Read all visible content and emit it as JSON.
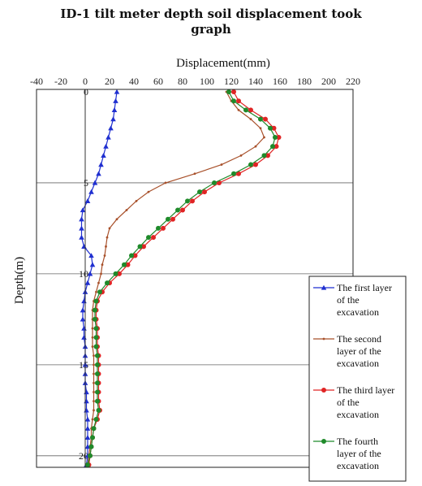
{
  "chart_data": {
    "type": "line",
    "title_line1": "ID-1 tilt meter depth soil displacement took",
    "title_line2": "graph",
    "xlabel": "Displacement(mm)",
    "ylabel": "Depth(m)",
    "xlim": [
      -40,
      220
    ],
    "ylim": [
      0,
      20.5
    ],
    "xticks": [
      "-40",
      "-20",
      "0",
      "20",
      "40",
      "60",
      "80",
      "100",
      "120",
      "140",
      "160",
      "180",
      "200",
      "220"
    ],
    "yticks": [
      "0",
      "5",
      "10",
      "15",
      "20"
    ],
    "gridlines_y": [
      5,
      10,
      15,
      20
    ],
    "legend_position": "right",
    "series": [
      {
        "name": "The first layer of the excavation",
        "color": "#1f2fd0",
        "marker": "triangle",
        "depth": [
          0,
          0.5,
          1,
          1.5,
          2,
          2.5,
          3,
          3.5,
          4,
          4.5,
          5,
          5.5,
          6,
          6.5,
          7,
          7.5,
          8,
          8.5,
          9,
          9.5,
          10,
          10.5,
          11,
          11.5,
          12,
          12.5,
          13,
          13.5,
          14,
          14.5,
          15,
          15.5,
          16,
          16.5,
          17,
          17.5,
          18,
          18.5,
          19,
          19.5,
          20,
          20.5
        ],
        "displacement": [
          26,
          25,
          24,
          23,
          21,
          19,
          17,
          15,
          13,
          11,
          8,
          5,
          2,
          -2,
          -3,
          -3,
          -3,
          -1,
          5,
          6,
          4,
          2,
          0,
          -1,
          -2,
          -2,
          -1,
          -1,
          0,
          0,
          0,
          0,
          0,
          1,
          1,
          1,
          2,
          2,
          2,
          2,
          2,
          1
        ]
      },
      {
        "name": "The second layer of the excavation",
        "color": "#a8502a",
        "marker": "dot",
        "depth": [
          0,
          0.5,
          1,
          1.5,
          2,
          2.5,
          3,
          3.5,
          4,
          4.5,
          5,
          5.5,
          6,
          6.5,
          7,
          7.5,
          8,
          8.5,
          9,
          9.5,
          10,
          10.5,
          11,
          11.5,
          12,
          12.5,
          13,
          13.5,
          14,
          14.5,
          15,
          15.5,
          16,
          16.5,
          17,
          17.5,
          18,
          18.5,
          19,
          19.5,
          20,
          20.5
        ],
        "displacement": [
          116,
          120,
          126,
          136,
          144,
          147,
          140,
          128,
          112,
          90,
          66,
          52,
          42,
          34,
          26,
          20,
          18,
          17,
          16,
          14,
          13,
          11,
          9,
          7,
          6,
          6,
          6,
          6,
          6,
          7,
          7,
          7,
          7,
          7,
          7,
          7,
          6,
          5,
          5,
          4,
          3,
          2
        ]
      },
      {
        "name": "The third layer of the excavation",
        "color": "#e02424",
        "marker": "circle",
        "depth": [
          0,
          0.5,
          1,
          1.5,
          2,
          2.5,
          3,
          3.5,
          4,
          4.5,
          5,
          5.5,
          6,
          6.5,
          7,
          7.5,
          8,
          8.5,
          9,
          9.5,
          10,
          10.5,
          11,
          11.5,
          12,
          12.5,
          13,
          13.5,
          14,
          14.5,
          15,
          15.5,
          16,
          16.5,
          17,
          17.5,
          18,
          18.5,
          19,
          19.5,
          20,
          20.5
        ],
        "displacement": [
          122,
          126,
          136,
          148,
          155,
          159,
          157,
          150,
          140,
          126,
          110,
          98,
          88,
          80,
          72,
          64,
          56,
          48,
          41,
          35,
          28,
          20,
          14,
          10,
          9,
          9,
          10,
          10,
          10,
          11,
          11,
          11,
          11,
          11,
          11,
          12,
          10,
          7,
          6,
          5,
          4,
          3
        ]
      },
      {
        "name": "The fourth layer of the excavation",
        "color": "#1f8a2a",
        "marker": "circle",
        "depth": [
          0,
          0.5,
          1,
          1.5,
          2,
          2.5,
          3,
          3.5,
          4,
          4.5,
          5,
          5.5,
          6,
          6.5,
          7,
          7.5,
          8,
          8.5,
          9,
          9.5,
          10,
          10.5,
          11,
          11.5,
          12,
          12.5,
          13,
          13.5,
          14,
          14.5,
          15,
          15.5,
          16,
          16.5,
          17,
          17.5,
          18,
          18.5,
          19,
          19.5,
          20,
          20.5
        ],
        "displacement": [
          118,
          122,
          132,
          144,
          152,
          156,
          154,
          147,
          136,
          122,
          106,
          94,
          84,
          76,
          68,
          60,
          52,
          45,
          38,
          32,
          25,
          18,
          12,
          9,
          8,
          8,
          9,
          9,
          9,
          10,
          10,
          10,
          10,
          10,
          10,
          11,
          9,
          7,
          6,
          5,
          4,
          2
        ]
      }
    ]
  }
}
